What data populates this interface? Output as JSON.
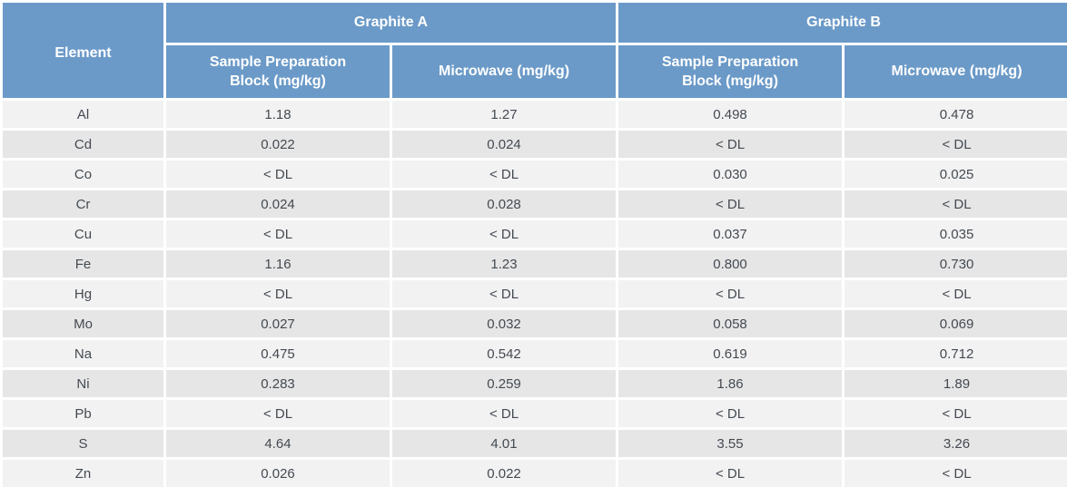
{
  "table": {
    "element_header": "Element",
    "groups": [
      "Graphite A",
      "Graphite B"
    ],
    "subheaders": [
      {
        "line1": "Sample Preparation",
        "line2": "Block (mg/kg)"
      },
      {
        "line1": "Microwave (mg/kg)",
        "line2": ""
      },
      {
        "line1": "Sample Preparation",
        "line2": "Block (mg/kg)"
      },
      {
        "line1": "Microwave (mg/kg)",
        "line2": ""
      }
    ],
    "rows": [
      [
        "Al",
        "1.18",
        "1.27",
        "0.498",
        "0.478"
      ],
      [
        "Cd",
        "0.022",
        "0.024",
        "< DL",
        "< DL"
      ],
      [
        "Co",
        "< DL",
        "< DL",
        "0.030",
        "0.025"
      ],
      [
        "Cr",
        "0.024",
        "0.028",
        "< DL",
        "< DL"
      ],
      [
        "Cu",
        "< DL",
        "< DL",
        "0.037",
        "0.035"
      ],
      [
        "Fe",
        "1.16",
        "1.23",
        "0.800",
        "0.730"
      ],
      [
        "Hg",
        "< DL",
        "< DL",
        "< DL",
        "< DL"
      ],
      [
        "Mo",
        "0.027",
        "0.032",
        "0.058",
        "0.069"
      ],
      [
        "Na",
        "0.475",
        "0.542",
        "0.619",
        "0.712"
      ],
      [
        "Ni",
        "0.283",
        "0.259",
        "1.86",
        "1.89"
      ],
      [
        "Pb",
        "< DL",
        "< DL",
        "< DL",
        "< DL"
      ],
      [
        "S",
        "4.64",
        "4.01",
        "3.55",
        "3.26"
      ],
      [
        "Zn",
        "0.026",
        "0.022",
        "< DL",
        "< DL"
      ]
    ]
  },
  "colors": {
    "header_bg": "#6b9ac8",
    "header_text": "#ffffff",
    "row_light": "#f2f2f3",
    "row_dark": "#e6e6e7",
    "cell_text": "#444a50"
  }
}
